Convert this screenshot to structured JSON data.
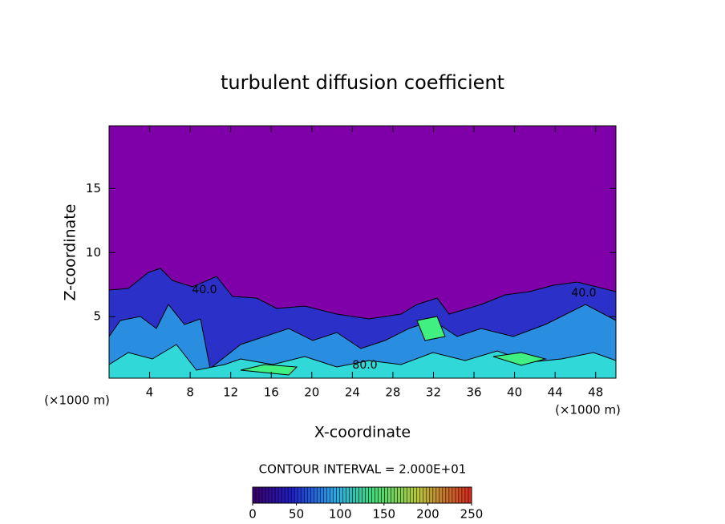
{
  "chart_data": {
    "type": "heatmap",
    "title": "turbulent diffusion coefficient",
    "x_label": "X-coordinate",
    "y_label": "Z-coordinate",
    "x_unit_labels": [
      "(×1000 m)",
      "(×1000 m)"
    ],
    "xlim": [
      0,
      50
    ],
    "xticks": [
      4,
      8,
      12,
      16,
      20,
      24,
      28,
      32,
      36,
      40,
      44,
      48
    ],
    "ylim": [
      0.2,
      19.9
    ],
    "yticks": [
      5,
      10,
      15
    ],
    "contour_labels": [
      "40.0",
      "40.0",
      "80.0"
    ],
    "contour_interval_label": "CONTOUR INTERVAL = 2.000E+01",
    "colorbar": {
      "lim": [
        0,
        250
      ],
      "ticks": [
        0,
        50,
        100,
        150,
        200,
        250
      ]
    }
  }
}
